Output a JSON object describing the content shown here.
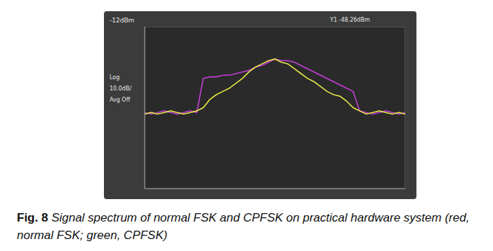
{
  "chart_data": {
    "type": "line",
    "screen_texts": {
      "reference_level": "-12dBm",
      "marker_readout": "Y1 -48.26dBm",
      "panel": [
        "Log",
        "10.0dB/",
        "Avg Off"
      ]
    },
    "caption": {
      "label": "Fig. 8",
      "text": "Signal spectrum of normal FSK and CPFSK on practical hardware system (red, normal FSK; green, CPFSK)"
    },
    "x": [
      0,
      0.25,
      0.5,
      0.75,
      1,
      1.25,
      1.5,
      1.75,
      2,
      2.25,
      2.5,
      2.75,
      3,
      3.25,
      3.5,
      3.75,
      4,
      4.25,
      4.5,
      4.75,
      5,
      5.25,
      5.5,
      5.75,
      6,
      6.25,
      6.5,
      6.75,
      7,
      7.25,
      7.5,
      7.75,
      8,
      8.25,
      8.5,
      8.75,
      9,
      9.25,
      9.5,
      9.75,
      10
    ],
    "series": [
      {
        "color": "#c43fd6",
        "values": [
          -65,
          -66,
          -65,
          -64,
          -65,
          -66,
          -65,
          -64,
          -65,
          -44,
          -43,
          -43,
          -42,
          -42,
          -41,
          -40,
          -39,
          -37,
          -36,
          -34,
          -32,
          -33,
          -33,
          -34,
          -36,
          -38,
          -40,
          -42,
          -44,
          -46,
          -48,
          -50,
          -52,
          -64,
          -65,
          -66,
          -65,
          -64,
          -65,
          -66,
          -65
        ]
      },
      {
        "color": "#e6e64a",
        "values": [
          -66,
          -65,
          -66,
          -65,
          -64,
          -65,
          -66,
          -65,
          -64,
          -62,
          -57,
          -54,
          -52,
          -50,
          -47,
          -44,
          -40,
          -37,
          -35,
          -33,
          -32,
          -34,
          -35,
          -38,
          -41,
          -44,
          -46,
          -49,
          -52,
          -54,
          -55,
          -58,
          -62,
          -64,
          -66,
          -65,
          -64,
          -65,
          -66,
          -65,
          -66
        ]
      }
    ],
    "xlim": [
      0,
      10
    ],
    "xticks": [
      0,
      1,
      2,
      3,
      4,
      5,
      6,
      7,
      8,
      9,
      10
    ],
    "ylim": [
      -112,
      -12
    ],
    "yticks": [
      -112,
      -102,
      -92,
      -82,
      -72,
      -62,
      -52,
      -42,
      -32,
      -22,
      -12
    ],
    "grid": true,
    "tick_labels": false
  }
}
